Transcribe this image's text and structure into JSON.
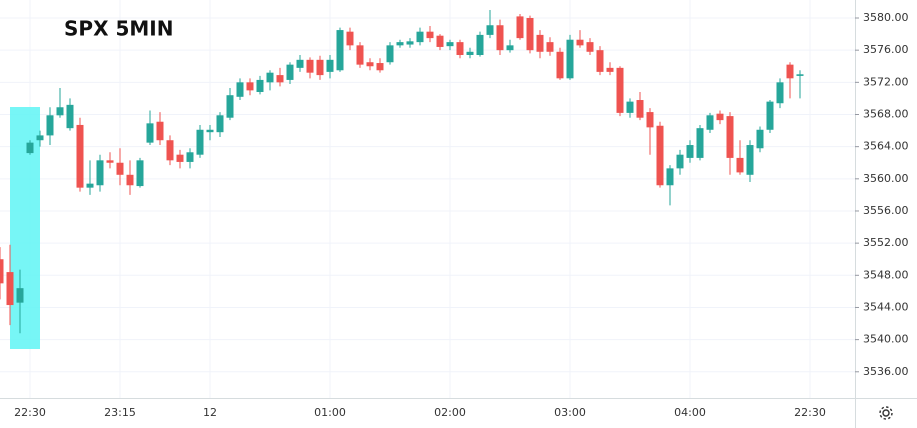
{
  "chart_data": {
    "type": "candlestick",
    "title": "SPX 5MIN",
    "categories": [
      null,
      null,
      null,
      "22:30",
      null,
      null,
      null,
      null,
      null,
      null,
      null,
      null,
      "23:15",
      null,
      null,
      null,
      null,
      null,
      null,
      null,
      null,
      "12",
      null,
      null,
      null,
      null,
      null,
      null,
      null,
      null,
      null,
      null,
      null,
      "01:00",
      null,
      null,
      null,
      null,
      null,
      null,
      null,
      null,
      null,
      null,
      null,
      "02:00",
      null,
      null,
      null,
      null,
      null,
      null,
      null,
      null,
      null,
      null,
      null,
      "03:00",
      null,
      null,
      null,
      null,
      null,
      null,
      null,
      null,
      null,
      null,
      null,
      "04:00",
      null,
      null,
      null,
      null,
      null,
      null,
      null,
      null,
      null,
      null,
      null,
      "22:30"
    ],
    "open": [
      3550,
      3548.4,
      3544.6,
      3563.2,
      3564.8,
      3565.4,
      3567.9,
      3566.3,
      3566.7,
      3558.9,
      3559.2,
      3562.3,
      3562,
      3560.5,
      3559.1,
      3564.5,
      3567.1,
      3564.8,
      3563,
      3562.1,
      3563,
      3565.8,
      3565.8,
      3567.6,
      3570.2,
      3572,
      3570.8,
      3572,
      3572.9,
      3572.3,
      3573.8,
      3574.8,
      3574.8,
      3573.3,
      3573.5,
      3578.3,
      3576.6,
      3574.5,
      3574.4,
      3574.5,
      3576.6,
      3576.7,
      3577,
      3578.3,
      3577.8,
      3576.5,
      3577,
      3575.4,
      3575.4,
      3577.9,
      3579.1,
      3576,
      3580.2,
      3580,
      3577.9,
      3577,
      3575.8,
      3572.5,
      3577.3,
      3577,
      3576,
      3573.8,
      3573.8,
      3568.2,
      3569.8,
      3568.3,
      3566.6,
      3559.2,
      3561.3,
      3562.6,
      3562.6,
      3566.1,
      3568.1,
      3567.8,
      3562.6,
      3560.5,
      3563.8,
      3566.1,
      3569.4,
      3574.2,
      3572.8,
      null
    ],
    "high": [
      3551.5,
      3551.8,
      3548.7,
      3564.8,
      3566,
      3568.9,
      3571.3,
      3570,
      3567.6,
      3562.3,
      3563,
      3563.3,
      3563.8,
      3562.3,
      3562.6,
      3568.5,
      3568.3,
      3565.4,
      3563.6,
      3563.8,
      3566.7,
      3566.7,
      3568.3,
      3571.3,
      3572.5,
      3572.5,
      3572.8,
      3573.5,
      3573.8,
      3574.5,
      3575.4,
      3575.1,
      3575.3,
      3575.4,
      3578.8,
      3578.8,
      3577,
      3575,
      3575,
      3577,
      3577.3,
      3577.5,
      3578.8,
      3579,
      3578,
      3577.3,
      3577.3,
      3576.3,
      3578.3,
      3581,
      3579.8,
      3577.3,
      3580.5,
      3580.3,
      3578.5,
      3577.6,
      3576.3,
      3577.9,
      3578.5,
      3577.5,
      3576.5,
      3574.5,
      3574,
      3570,
      3570.8,
      3568.8,
      3567.1,
      3561.7,
      3563.6,
      3564.8,
      3566.7,
      3568.2,
      3568.5,
      3568.3,
      3564.8,
      3564.8,
      3566.5,
      3569.8,
      3572.5,
      3574.5,
      3573.5,
      null
    ],
    "low": [
      3545,
      3541.8,
      3540.8,
      3563,
      3564,
      3564.2,
      3567.6,
      3566,
      3558.4,
      3558,
      3558.4,
      3561.3,
      3559.2,
      3558,
      3558.9,
      3564.2,
      3564.2,
      3561.7,
      3561.3,
      3561.3,
      3562.6,
      3564.8,
      3565.2,
      3567.3,
      3569.8,
      3570.4,
      3570.5,
      3571,
      3571.5,
      3571.8,
      3573.3,
      3572.5,
      3572.3,
      3572.5,
      3573.3,
      3576,
      3573.8,
      3573.5,
      3573.2,
      3574.2,
      3576.3,
      3576.3,
      3576.6,
      3577,
      3576,
      3576,
      3575,
      3575,
      3575.2,
      3577.5,
      3575.4,
      3575.7,
      3577.3,
      3575.6,
      3575,
      3575.3,
      3572.3,
      3572.3,
      3576.3,
      3575.4,
      3572.9,
      3572.9,
      3567.8,
      3567.6,
      3567.3,
      3563,
      3558.9,
      3556.7,
      3560.5,
      3562,
      3562.3,
      3565.7,
      3566.8,
      3560.5,
      3560.5,
      3559.6,
      3563.3,
      3565.7,
      3568.8,
      3570,
      3570,
      null
    ],
    "close": [
      3547,
      3544.3,
      3546.4,
      3564.5,
      3565.4,
      3567.9,
      3568.9,
      3569.2,
      3558.9,
      3559.4,
      3562.3,
      3562,
      3560.5,
      3559.2,
      3562.3,
      3566.9,
      3564.8,
      3562.3,
      3562.1,
      3563.3,
      3566.1,
      3566.1,
      3567.9,
      3570.4,
      3572,
      3571,
      3572.3,
      3573.2,
      3572,
      3574.2,
      3574.8,
      3573.2,
      3572.9,
      3574.8,
      3578.5,
      3576.6,
      3574.2,
      3574,
      3573.5,
      3576.6,
      3577,
      3577.1,
      3578.3,
      3577.5,
      3576.4,
      3577,
      3575.4,
      3575.8,
      3577.9,
      3579.1,
      3576,
      3576.6,
      3577.5,
      3576,
      3575.8,
      3575.8,
      3572.5,
      3577.3,
      3576.6,
      3575.8,
      3573.3,
      3573.3,
      3568.2,
      3569.6,
      3567.6,
      3566.4,
      3559.2,
      3561.3,
      3563,
      3564.2,
      3566.3,
      3567.9,
      3567.3,
      3562.6,
      3560.8,
      3564.2,
      3566.1,
      3569.6,
      3572,
      3572.5,
      3573,
      null
    ],
    "up_color": "#26a69a",
    "down_color": "#ef5350",
    "ylim": [
      3532.74,
      3582.24
    ],
    "yticks": [
      {
        "value": 3536,
        "label": "3536.00"
      },
      {
        "value": 3540,
        "label": "3540.00"
      },
      {
        "value": 3544,
        "label": "3544.00"
      },
      {
        "value": 3548,
        "label": "3548.00"
      },
      {
        "value": 3552,
        "label": "3552.00"
      },
      {
        "value": 3556,
        "label": "3556.00"
      },
      {
        "value": 3560,
        "label": "3560.00"
      },
      {
        "value": 3564,
        "label": "3564.00"
      },
      {
        "value": 3568,
        "label": "3568.00"
      },
      {
        "value": 3572,
        "label": "3572.00"
      },
      {
        "value": 3576,
        "label": "3576.00"
      },
      {
        "value": 3580,
        "label": "3580.00"
      }
    ],
    "grid": true
  }
}
